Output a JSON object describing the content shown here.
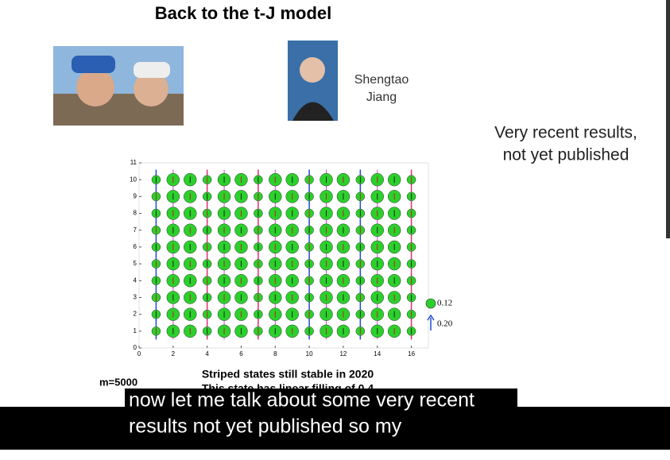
{
  "header": {
    "title": "Back to the t-J model"
  },
  "person": {
    "name_lines": [
      "Shengtao",
      "Jiang"
    ]
  },
  "note": {
    "lines": [
      "Very recent results,",
      "not yet published"
    ]
  },
  "plot": {
    "xlim": [
      0,
      17
    ],
    "ylim": [
      0,
      11
    ],
    "xticks": [
      0,
      2,
      4,
      6,
      8,
      10,
      12,
      14,
      16
    ],
    "yticks": [
      0,
      1,
      2,
      3,
      4,
      5,
      6,
      7,
      8,
      9,
      10,
      11
    ],
    "legend": [
      "0.12",
      "0.20"
    ]
  },
  "footer": {
    "m_label": "m=5000",
    "caption": "Striped states still stable in 2020",
    "caption2": "This state has linear filling of 0.4"
  },
  "subtitles": [
    "now let me talk about some very recent",
    "results not yet published so my"
  ]
}
